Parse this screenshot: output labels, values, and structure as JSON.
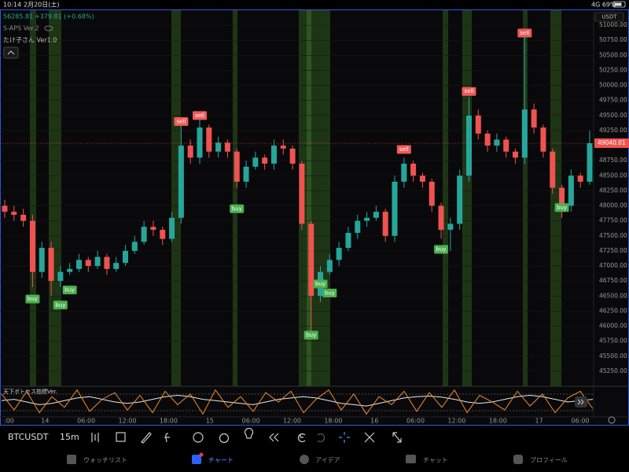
{
  "status_bar": {
    "time": "10:14",
    "date": "2月20日(土)",
    "signal": "4G 69%"
  },
  "chart_data": {
    "type": "candlestick",
    "symbol_price": "56285.81",
    "change": "+379.81 (+0.68%)",
    "indicators": [
      "S-APS Ver.2",
      "たけ子さん Ver1.0"
    ],
    "currency": "USDT",
    "up_color": "#26a69a",
    "down_color": "#ef5350",
    "open": [
      48000,
      47900,
      47850,
      47750,
      46900,
      47300,
      46750,
      46900,
      46950,
      47100,
      47000,
      47150,
      46950,
      47050,
      47250,
      47400,
      47650,
      47600,
      47450,
      47800,
      49000,
      48800,
      49300,
      48900,
      49050,
      48900,
      48400,
      48650,
      48800,
      48700,
      49000,
      48950,
      48700,
      47700,
      46500,
      46900,
      47100,
      47300,
      47550,
      47750,
      47800,
      47900,
      47500,
      48400,
      48700,
      48500,
      48400,
      48000,
      47600,
      47700,
      48500,
      49500,
      49200,
      49000,
      49100,
      48900,
      48800,
      49600,
      49300,
      48900,
      48300,
      48000,
      48500,
      48400
    ],
    "high": [
      48100,
      48000,
      47950,
      47850,
      47400,
      47400,
      47000,
      47050,
      47200,
      47150,
      47250,
      47200,
      47150,
      47350,
      47500,
      47750,
      47750,
      47650,
      47900,
      49350,
      49100,
      49500,
      49350,
      49150,
      49100,
      48950,
      48750,
      48900,
      48850,
      49100,
      49100,
      49000,
      48750,
      47750,
      47000,
      47200,
      47400,
      47650,
      47850,
      47900,
      48000,
      47950,
      48500,
      48800,
      48750,
      48550,
      48450,
      48050,
      47800,
      48600,
      49800,
      49600,
      49250,
      49200,
      49150,
      48950,
      50800,
      49700,
      49350,
      48950,
      48350,
      48600,
      48550,
      49250
    ],
    "low": [
      47800,
      47750,
      47650,
      46650,
      46800,
      46500,
      46650,
      46850,
      46900,
      46900,
      46950,
      46850,
      46900,
      47000,
      47200,
      47350,
      47500,
      47350,
      47400,
      47700,
      48700,
      48700,
      48800,
      48800,
      48800,
      48300,
      48300,
      48600,
      48600,
      48600,
      48850,
      48600,
      47600,
      45900,
      46400,
      46850,
      47000,
      47250,
      47450,
      47650,
      47750,
      47400,
      47400,
      48300,
      48400,
      48300,
      47900,
      47450,
      47250,
      47600,
      48400,
      49100,
      48900,
      48900,
      48800,
      48700,
      48700,
      49200,
      48800,
      48200,
      47800,
      47900,
      48300,
      48350
    ],
    "close": [
      47900,
      47850,
      47750,
      46900,
      47300,
      46750,
      46900,
      46950,
      47100,
      47000,
      47150,
      46950,
      47050,
      47250,
      47400,
      47650,
      47600,
      47450,
      47800,
      49000,
      48800,
      49300,
      48900,
      49050,
      48900,
      48400,
      48650,
      48800,
      48700,
      49000,
      48950,
      48700,
      47700,
      46500,
      46900,
      47100,
      47300,
      47550,
      47750,
      47800,
      47900,
      47500,
      48400,
      48700,
      48500,
      48400,
      48000,
      47600,
      47700,
      48500,
      49500,
      49200,
      49000,
      49100,
      48900,
      48800,
      49600,
      49300,
      48900,
      48300,
      48000,
      48500,
      48400,
      49040
    ],
    "buy_label": "buy",
    "sell_label": "sell",
    "buy_color": "#4caf50",
    "sell_color": "#f05a5a",
    "buy_signals": [
      null,
      null,
      null,
      46450,
      null,
      null,
      46350,
      46600,
      null,
      null,
      null,
      null,
      null,
      null,
      null,
      null,
      null,
      null,
      null,
      null,
      null,
      null,
      null,
      null,
      null,
      47950,
      null,
      null,
      null,
      null,
      null,
      null,
      null,
      45850,
      46700,
      46550,
      null,
      null,
      null,
      null,
      null,
      null,
      null,
      null,
      null,
      null,
      null,
      47275,
      null,
      null,
      null,
      null,
      null,
      null,
      null,
      null,
      null,
      null,
      null,
      null,
      47970,
      null,
      null,
      null
    ],
    "sell_signals": [
      null,
      null,
      null,
      null,
      null,
      null,
      null,
      null,
      null,
      null,
      null,
      null,
      null,
      null,
      null,
      null,
      null,
      null,
      null,
      49400,
      null,
      49500,
      null,
      null,
      null,
      null,
      null,
      null,
      null,
      null,
      null,
      null,
      null,
      null,
      null,
      null,
      null,
      null,
      null,
      null,
      null,
      null,
      null,
      48935,
      null,
      null,
      null,
      null,
      null,
      null,
      49900,
      null,
      null,
      null,
      null,
      null,
      50870,
      null,
      null,
      null,
      null,
      null,
      null,
      null
    ],
    "last_price": 49040.01,
    "ylim": [
      45000,
      51250
    ],
    "yticks": [
      {
        "value": 45250,
        "label": "45250.00"
      },
      {
        "value": 45500,
        "label": "45500.00"
      },
      {
        "value": 45750,
        "label": "45750.00"
      },
      {
        "value": 46000,
        "label": "46000.00"
      },
      {
        "value": 46250,
        "label": "46250.00"
      },
      {
        "value": 46500,
        "label": "46500.00"
      },
      {
        "value": 46750,
        "label": "46750.00"
      },
      {
        "value": 47000,
        "label": "47000.00"
      },
      {
        "value": 47250,
        "label": "47250.00"
      },
      {
        "value": 47500,
        "label": "47500.00"
      },
      {
        "value": 47750,
        "label": "47750.00"
      },
      {
        "value": 48000,
        "label": "48000.00"
      },
      {
        "value": 48250,
        "label": "48250.00"
      },
      {
        "value": 48500,
        "label": "48500.00"
      },
      {
        "value": 48750,
        "label": "48750.00"
      },
      {
        "value": 49000,
        "label": "49000.00"
      },
      {
        "value": 49250,
        "label": "49250.00"
      },
      {
        "value": 49500,
        "label": "49500.00"
      },
      {
        "value": 49750,
        "label": "49750.00"
      },
      {
        "value": 50000,
        "label": "50000.00"
      },
      {
        "value": 50250,
        "label": "50250.00"
      },
      {
        "value": 50500,
        "label": "50500.00"
      },
      {
        "value": 50750,
        "label": "50750.00"
      },
      {
        "value": 51000,
        "label": "51000.00"
      }
    ],
    "xticks": [
      ":00",
      "14",
      "06:00",
      "12:00",
      "18:00",
      "15",
      "06:00",
      "12:00",
      "18:00",
      "16",
      "06:00",
      "12:00",
      "18:00",
      "17",
      "06:00"
    ],
    "oscillator": {
      "title": "天下ボトセス指標Ver.",
      "ylim": [
        0,
        100
      ],
      "series": [
        {
          "color": "#e8e8e8",
          "values": [
            55,
            60,
            50,
            40,
            45,
            55,
            65,
            70,
            60,
            50,
            45,
            50,
            60,
            70,
            75,
            70,
            60,
            55,
            50,
            45,
            40,
            50,
            60,
            65,
            70,
            65,
            55,
            45,
            40,
            35,
            45,
            55,
            65,
            70,
            72,
            68,
            60,
            50,
            45,
            50,
            60,
            70,
            75,
            70,
            60,
            50,
            55,
            60
          ]
        },
        {
          "color": "#f28c28",
          "values": [
            80,
            20,
            90,
            10,
            70,
            30,
            95,
            15,
            60,
            85,
            20,
            75,
            10,
            90,
            40,
            80,
            5,
            95,
            30,
            70,
            15,
            85,
            50,
            90,
            10,
            60,
            95,
            20,
            80,
            5,
            70,
            40,
            90,
            15,
            85,
            30,
            95,
            10,
            75,
            50,
            20,
            90,
            35,
            80,
            10,
            65,
            90,
            25
          ]
        }
      ]
    }
  },
  "toolbar": {
    "symbol": "BTCUSDT",
    "interval": "15m"
  },
  "tabs": [
    "ウォッチリスト",
    "チャート",
    "アイデア",
    "チャット",
    "プロフィール"
  ]
}
